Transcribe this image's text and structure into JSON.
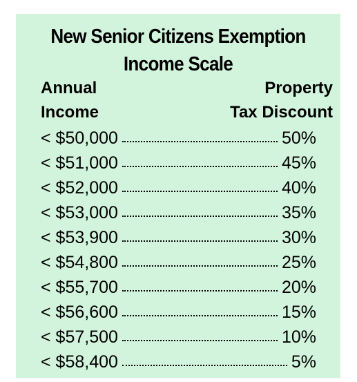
{
  "title_line1": "New Senior Citizens Exemption",
  "title_line2": "Income Scale",
  "header": {
    "left_line1": "Annual",
    "left_line2": "Income",
    "right_line1": "Property",
    "right_line2": "Tax Discount"
  },
  "rows": [
    {
      "income": "< $50,000",
      "discount": "50%"
    },
    {
      "income": "< $51,000",
      "discount": "45%"
    },
    {
      "income": "< $52,000",
      "discount": "40%"
    },
    {
      "income": "< $53,000",
      "discount": "35%"
    },
    {
      "income": "< $53,900",
      "discount": "30%"
    },
    {
      "income": "< $54,800",
      "discount": "25%"
    },
    {
      "income": "< $55,700",
      "discount": "20%"
    },
    {
      "income": "< $56,600",
      "discount": "15%"
    },
    {
      "income": "< $57,500",
      "discount": "10%"
    },
    {
      "income": "< $58,400",
      "discount": "5%"
    }
  ],
  "colors": {
    "card_background": "#d3f4dc",
    "text": "#000000"
  }
}
